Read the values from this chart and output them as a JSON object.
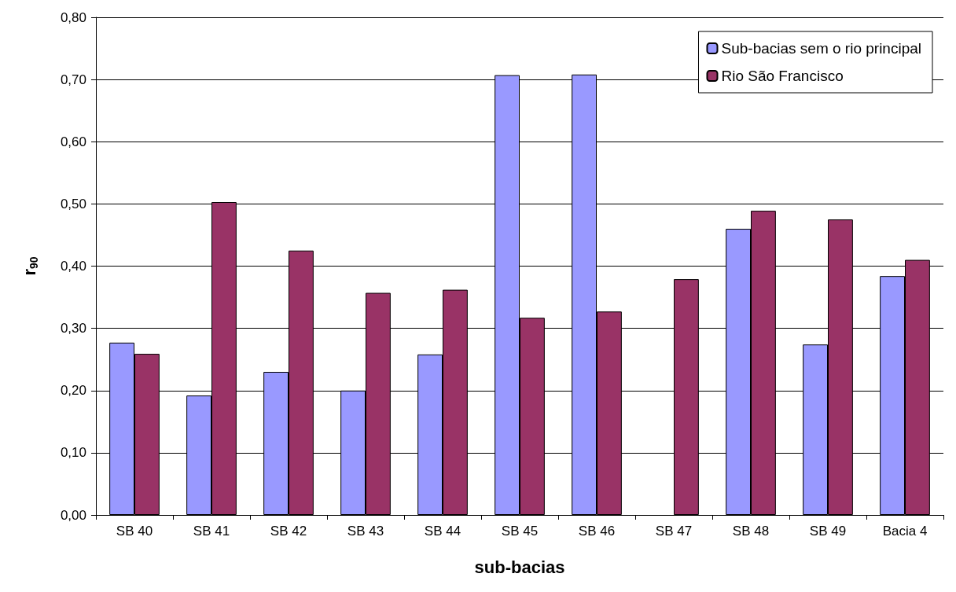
{
  "chart_data": {
    "type": "bar",
    "xlabel": "sub-bacias",
    "ylabel": "r$_{90}$",
    "categories": [
      "SB 40",
      "SB 41",
      "SB 42",
      "SB 43",
      "SB 44",
      "SB 45",
      "SB 46",
      "SB 47",
      "SB 48",
      "SB 49",
      "Bacia 4"
    ],
    "series": [
      {
        "name": "Sub-bacias sem o rio principal",
        "color": "#9999ff",
        "values": [
          0.277,
          0.192,
          0.23,
          0.2,
          0.258,
          0.707,
          0.708,
          null,
          0.46,
          0.274,
          0.384
        ]
      },
      {
        "name": "Rio São Francisco",
        "color": "#993366",
        "values": [
          0.259,
          0.503,
          0.425,
          0.357,
          0.362,
          0.317,
          0.327,
          0.379,
          0.489,
          0.475,
          0.41
        ]
      }
    ],
    "ylim": [
      0,
      0.8
    ],
    "yticks": [
      {
        "value": 0,
        "label": "0,00"
      },
      {
        "value": 0.1,
        "label": "0,10"
      },
      {
        "value": 0.2,
        "label": "0,20"
      },
      {
        "value": 0.3,
        "label": "0,30"
      },
      {
        "value": 0.4,
        "label": "0,40"
      },
      {
        "value": 0.5,
        "label": "0,50"
      },
      {
        "value": 0.6,
        "label": "0,60"
      },
      {
        "value": 0.7,
        "label": "0,70"
      },
      {
        "value": 0.8,
        "label": "0,80"
      }
    ],
    "grid": "y",
    "legend": "top right"
  }
}
